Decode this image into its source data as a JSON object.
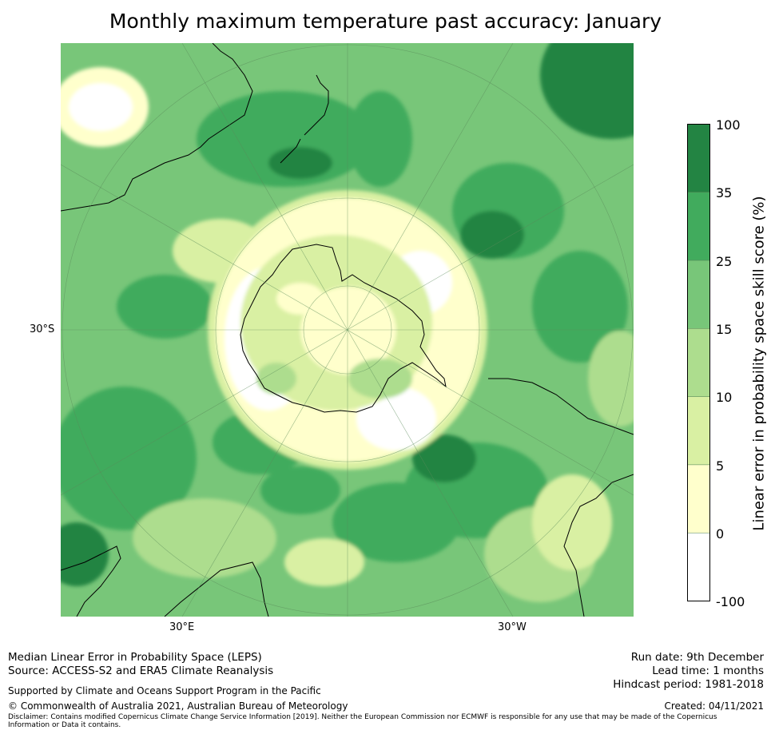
{
  "title": "Monthly maximum temperature past accuracy: January",
  "map": {
    "projection": "south-polar-stereographic",
    "gridlines": {
      "lat": [
        "30°S"
      ],
      "lon": [
        "30°E",
        "30°W"
      ]
    }
  },
  "colorbar": {
    "title": "Linear error in probability space skill score (%)",
    "ticks": [
      "100",
      "35",
      "25",
      "15",
      "10",
      "5",
      "0",
      "-100"
    ],
    "levels": [
      {
        "range": "-100 to 0",
        "color": "#ffffff"
      },
      {
        "range": "0 to 5",
        "color": "#ffffcc"
      },
      {
        "range": "5 to 10",
        "color": "#d9f0a3"
      },
      {
        "range": "10 to 15",
        "color": "#addd8e"
      },
      {
        "range": "15 to 25",
        "color": "#78c679"
      },
      {
        "range": "25 to 35",
        "color": "#41ab5d"
      },
      {
        "range": "35 to 100",
        "color": "#238443"
      }
    ]
  },
  "footer": {
    "line1": "Median Linear Error in Probability Space (LEPS)",
    "line2": "Source: ACCESS-S2 and ERA5 Climate Reanalysis",
    "support": "Supported by Climate and Oceans Support Program in the Pacific",
    "copyright": "© Commonwealth of Australia 2021, Australian Bureau of Meteorology",
    "disclaimer": "Disclaimer: Contains modified Copernicus Climate Change Service Information [2019]. Neither the European Commission nor ECMWF is responsible for any use that may be made of the Copernicus Information or Data it contains.",
    "run_date": "Run date: 9th December",
    "lead_time": "Lead time: 1 months",
    "hindcast": "Hindcast period: 1981-2018",
    "created": "Created: 04/11/2021"
  }
}
